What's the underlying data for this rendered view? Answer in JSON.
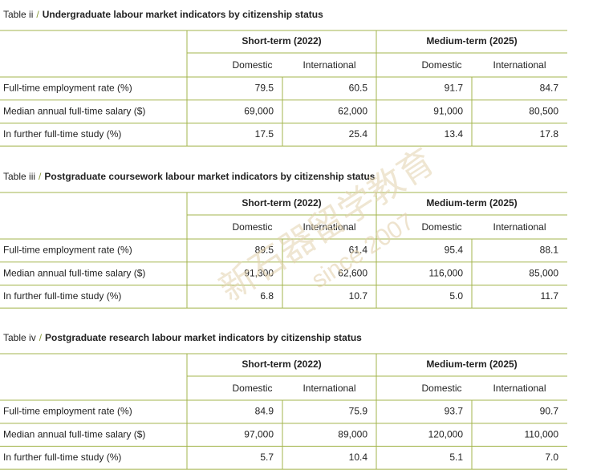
{
  "tables": [
    {
      "label": "Table ii",
      "title": "Undergraduate labour market indicators by citizenship status",
      "groups": [
        "Short-term (2022)",
        "Medium-term (2025)"
      ],
      "subheaders": [
        "Domestic",
        "International",
        "Domestic",
        "International"
      ],
      "rows": [
        {
          "label": "Full-time employment rate (%)",
          "values": [
            "79.5",
            "60.5",
            "91.7",
            "84.7"
          ]
        },
        {
          "label": "Median annual full-time salary ($)",
          "values": [
            "69,000",
            "62,000",
            "91,000",
            "80,500"
          ]
        },
        {
          "label": "In further full-time study (%)",
          "values": [
            "17.5",
            "25.4",
            "13.4",
            "17.8"
          ]
        }
      ]
    },
    {
      "label": "Table iii",
      "title": "Postgraduate coursework labour market indicators by citizenship status",
      "groups": [
        "Short-term (2022)",
        "Medium-term (2025)"
      ],
      "subheaders": [
        "Domestic",
        "International",
        "Domestic",
        "International"
      ],
      "rows": [
        {
          "label": "Full-time employment rate (%)",
          "values": [
            "89.5",
            "61.4",
            "95.4",
            "88.1"
          ]
        },
        {
          "label": "Median annual full-time salary ($)",
          "values": [
            "91,300",
            "62,600",
            "116,000",
            "85,000"
          ]
        },
        {
          "label": "In further full-time study (%)",
          "values": [
            "6.8",
            "10.7",
            "5.0",
            "11.7"
          ]
        }
      ]
    },
    {
      "label": "Table iv",
      "title": "Postgraduate research labour market indicators by citizenship status",
      "groups": [
        "Short-term (2022)",
        "Medium-term (2025)"
      ],
      "subheaders": [
        "Domestic",
        "International",
        "Domestic",
        "International"
      ],
      "rows": [
        {
          "label": "Full-time employment rate (%)",
          "values": [
            "84.9",
            "75.9",
            "93.7",
            "90.7"
          ]
        },
        {
          "label": "Median annual full-time salary ($)",
          "values": [
            "97,000",
            "89,000",
            "120,000",
            "110,000"
          ]
        },
        {
          "label": "In further full-time study (%)",
          "values": [
            "5.7",
            "10.4",
            "5.1",
            "7.0"
          ]
        }
      ]
    }
  ],
  "watermark": {
    "name": "新石器留学教育",
    "since": "since 2007"
  }
}
